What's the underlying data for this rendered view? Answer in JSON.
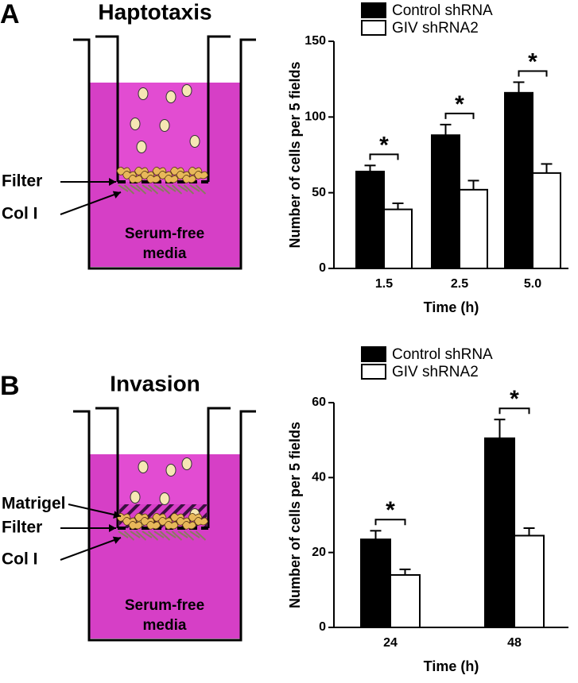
{
  "chart_data": [
    {
      "type": "bar",
      "panel": "A",
      "ylabel": "Number of cells per 5 fields",
      "xlabel": "Time (h)",
      "categories": [
        "1.5",
        "2.5",
        "5.0"
      ],
      "series": [
        {
          "name": "Control shRNA",
          "color": "#000000",
          "values": [
            64,
            88,
            116
          ],
          "errors": [
            4,
            7,
            7
          ]
        },
        {
          "name": "GIV shRNA2",
          "color": "#ffffff",
          "values": [
            39,
            52,
            63
          ],
          "errors": [
            4,
            6,
            6
          ]
        }
      ],
      "annotations": [
        "*",
        "*",
        "*"
      ],
      "ylim": [
        0,
        150
      ],
      "yticks": [
        0,
        50,
        100,
        150
      ]
    },
    {
      "type": "bar",
      "panel": "B",
      "ylabel": "Number of cells per 5 fields",
      "xlabel": "Time (h)",
      "categories": [
        "24",
        "48"
      ],
      "series": [
        {
          "name": "Control shRNA",
          "color": "#000000",
          "values": [
            23.5,
            50.5
          ],
          "errors": [
            2.3,
            5
          ]
        },
        {
          "name": "GIV shRNA2",
          "color": "#ffffff",
          "values": [
            14,
            24.5
          ],
          "errors": [
            1.5,
            2
          ]
        }
      ],
      "annotations": [
        "*",
        "*"
      ],
      "ylim": [
        0,
        60
      ],
      "yticks": [
        0,
        20,
        40,
        60
      ]
    }
  ],
  "diagrams": [
    {
      "letter": "A",
      "title": "Haptotaxis",
      "labels": [
        "Filter",
        "Col I"
      ],
      "media": [
        "Serum-free",
        "media"
      ]
    },
    {
      "letter": "B",
      "title": "Invasion",
      "labels": [
        "Matrigel",
        "Filter",
        "Col I"
      ],
      "media": [
        "Serum-free",
        "media"
      ]
    }
  ]
}
